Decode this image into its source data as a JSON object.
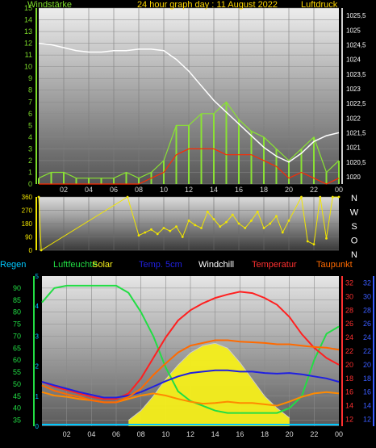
{
  "colors": {
    "bg": "#000000",
    "wind_avg": "#8ae234",
    "gust": "#ff2a00",
    "pressure": "#ffffff",
    "dir": "#f2e600",
    "humidity": "#22dd44",
    "solar": "#f5ef1a",
    "soil": "#2020e0",
    "windchill": "#ff6a00",
    "temperature": "#ff2020",
    "dewpoint": "#ff8a00",
    "rain": "#00c8ff",
    "axis_left_top": "#7ddc2a",
    "axis_right_bottom": "#ff3030",
    "axis_right2": "#3a5cff"
  },
  "top": {
    "title": "24 hour graph day : 11 August 2022",
    "left_label": "Windstärke",
    "right_label": "Luftdruck",
    "left_ticks": [
      "0",
      "1",
      "2",
      "3",
      "4",
      "5",
      "6",
      "7",
      "8",
      "9",
      "10",
      "11",
      "12",
      "13",
      "14",
      "15"
    ],
    "right_ticks": [
      "1020",
      "1020,5",
      "1021",
      "1021,5",
      "1022",
      "1022,5",
      "1023",
      "1023,5",
      "1024",
      "1024,5",
      "1025",
      "1025,5"
    ],
    "x_ticks": [
      "02",
      "04",
      "06",
      "08",
      "10",
      "12",
      "14",
      "16",
      "18",
      "20",
      "22",
      "00"
    ]
  },
  "mid": {
    "left_ticks": [
      "0",
      "90",
      "180",
      "270",
      "360"
    ],
    "dir_letters": [
      "N",
      "W",
      "S",
      "O",
      "N"
    ]
  },
  "bottom": {
    "legend": [
      {
        "label": "Regen",
        "color": "#00c8ff"
      },
      {
        "label": "Luftfeuchte",
        "color": "#22dd44"
      },
      {
        "label": "Solar",
        "color": "#f5ef1a"
      },
      {
        "label": "Temp. 5cm",
        "color": "#2020e0"
      },
      {
        "label": "Windchill",
        "color": "#ffffff"
      },
      {
        "label": "Temperatur",
        "color": "#ff3030"
      },
      {
        "label": "Taupunkt",
        "color": "#ff6a00"
      }
    ],
    "left_ticks": [
      "35",
      "40",
      "45",
      "50",
      "55",
      "60",
      "65",
      "70",
      "75",
      "80",
      "85",
      "90"
    ],
    "rain_ticks": [
      "0",
      "1",
      "2",
      "3",
      "4",
      "5"
    ],
    "right_ticks": [
      "12",
      "14",
      "16",
      "18",
      "20",
      "22",
      "24",
      "26",
      "28",
      "30",
      "32"
    ],
    "right2_ticks": [
      "12",
      "14",
      "16",
      "18",
      "20",
      "22",
      "24",
      "26",
      "28",
      "30",
      "32"
    ],
    "x_ticks": [
      "02",
      "04",
      "06",
      "08",
      "10",
      "12",
      "14",
      "16",
      "18",
      "20",
      "22",
      "00"
    ]
  },
  "chart_data": [
    {
      "type": "line",
      "x_unit": "hour",
      "xlim": [
        0,
        24
      ],
      "series": [
        {
          "name": "Luftdruck",
          "axis": "right",
          "x": [
            0,
            1,
            2,
            3,
            4,
            5,
            6,
            7,
            8,
            9,
            10,
            11,
            12,
            13,
            14,
            15,
            16,
            17,
            18,
            19,
            20,
            21,
            22,
            23,
            24
          ],
          "values": [
            1024.55,
            1024.5,
            1024.4,
            1024.3,
            1024.25,
            1024.25,
            1024.3,
            1024.3,
            1024.35,
            1024.35,
            1024.3,
            1024.0,
            1023.6,
            1023.1,
            1022.6,
            1022.2,
            1021.8,
            1021.4,
            1021.0,
            1020.7,
            1020.5,
            1020.8,
            1021.2,
            1021.4,
            1021.5
          ]
        },
        {
          "name": "Windstärke",
          "axis": "left",
          "x": [
            0,
            1,
            2,
            3,
            4,
            5,
            6,
            7,
            8,
            9,
            10,
            11,
            12,
            13,
            14,
            15,
            16,
            17,
            18,
            19,
            20,
            21,
            22,
            23,
            24
          ],
          "values": [
            0.5,
            1,
            1,
            0.5,
            0.5,
            0.5,
            0.5,
            1,
            0.5,
            1,
            2,
            5,
            5,
            6,
            6,
            7,
            5.5,
            4.5,
            4,
            3,
            2,
            3,
            4,
            1,
            2
          ]
        },
        {
          "name": "Böen",
          "axis": "left",
          "x": [
            0,
            1,
            2,
            3,
            4,
            5,
            6,
            7,
            8,
            9,
            10,
            11,
            12,
            13,
            14,
            15,
            16,
            17,
            18,
            19,
            20,
            21,
            22,
            23,
            24
          ],
          "values": [
            0,
            0,
            0,
            0,
            0,
            0,
            0,
            0,
            0,
            0.5,
            1,
            2.5,
            3,
            3,
            3,
            2.5,
            2.5,
            2.5,
            2,
            1.5,
            0.5,
            1,
            0.5,
            0,
            0.5
          ]
        }
      ],
      "ylim_left": [
        0,
        15
      ],
      "ylim_right": [
        1019.75,
        1025.75
      ]
    },
    {
      "type": "scatter",
      "x_unit": "hour",
      "xlim": [
        0,
        24
      ],
      "ylim": [
        0,
        360
      ],
      "series": [
        {
          "name": "Windrichtung",
          "x": [
            0,
            0.2,
            7.1,
            8,
            8.5,
            9,
            9.5,
            10,
            10.5,
            11,
            11.5,
            12,
            12.5,
            13,
            13.5,
            14,
            14.5,
            15,
            15.5,
            16,
            16.5,
            17,
            17.5,
            18,
            18.5,
            19,
            19.5,
            20,
            21,
            21.5,
            22,
            22.5,
            23,
            23.5,
            24
          ],
          "values": [
            360,
            0,
            360,
            100,
            120,
            140,
            110,
            150,
            130,
            160,
            90,
            200,
            170,
            150,
            260,
            210,
            160,
            190,
            240,
            180,
            150,
            200,
            260,
            150,
            180,
            230,
            120,
            200,
            360,
            60,
            40,
            360,
            80,
            360,
            360
          ]
        }
      ]
    },
    {
      "type": "line",
      "x_unit": "hour",
      "xlim": [
        0,
        24
      ],
      "series": [
        {
          "name": "Luftfeuchte",
          "axis": "left",
          "x": [
            0,
            1,
            2,
            3,
            4,
            5,
            6,
            7,
            8,
            9,
            10,
            11,
            12,
            13,
            14,
            15,
            16,
            17,
            18,
            19,
            20,
            21,
            22,
            23,
            24
          ],
          "values": [
            84,
            90,
            91,
            91,
            91,
            91,
            91,
            88,
            80,
            70,
            57,
            47,
            43,
            41,
            39,
            38,
            38,
            38,
            38,
            38,
            40,
            45,
            60,
            71,
            74
          ]
        },
        {
          "name": "Temperatur",
          "axis": "right",
          "x": [
            0,
            1,
            2,
            3,
            4,
            5,
            6,
            7,
            8,
            9,
            10,
            11,
            12,
            13,
            14,
            15,
            16,
            17,
            18,
            19,
            20,
            21,
            22,
            23,
            24
          ],
          "values": [
            17.5,
            16.8,
            16.3,
            15.8,
            15.3,
            15.0,
            15.0,
            15.8,
            18.0,
            21.0,
            24.0,
            26.5,
            28.0,
            29.0,
            29.8,
            30.3,
            30.7,
            30.5,
            29.8,
            28.8,
            27.0,
            24.5,
            22.5,
            21.0,
            20.0
          ]
        },
        {
          "name": "Taupunkt",
          "axis": "right",
          "x": [
            0,
            1,
            2,
            3,
            4,
            5,
            6,
            7,
            8,
            9,
            10,
            11,
            12,
            13,
            14,
            15,
            16,
            17,
            18,
            19,
            20,
            21,
            22,
            23,
            24
          ],
          "values": [
            16.0,
            15.5,
            15.3,
            15.0,
            14.8,
            14.5,
            14.5,
            15.0,
            15.5,
            15.8,
            15.5,
            15.0,
            14.6,
            14.3,
            14.4,
            14.6,
            14.4,
            14.4,
            14.2,
            14.0,
            14.6,
            15.3,
            15.8,
            16.0,
            15.8
          ]
        },
        {
          "name": "Temp. 5cm",
          "axis": "right2",
          "x": [
            0,
            1,
            2,
            3,
            4,
            5,
            6,
            7,
            8,
            9,
            10,
            11,
            12,
            13,
            14,
            15,
            16,
            17,
            18,
            19,
            20,
            21,
            22,
            23,
            24
          ],
          "values": [
            17.5,
            17.0,
            16.5,
            16.0,
            15.6,
            15.2,
            15.2,
            15.5,
            16.0,
            16.8,
            17.6,
            18.3,
            18.8,
            19.0,
            19.2,
            19.2,
            19.0,
            19.0,
            18.8,
            18.7,
            18.8,
            18.6,
            18.3,
            18.0,
            17.5
          ]
        },
        {
          "name": "Windchill",
          "axis": "right",
          "x": [
            0,
            1,
            2,
            3,
            4,
            5,
            6,
            7,
            8,
            9,
            10,
            11,
            12,
            13,
            14,
            15,
            16,
            17,
            18,
            19,
            20,
            21,
            22,
            23,
            24
          ],
          "values": [
            17.0,
            16.2,
            15.7,
            15.3,
            14.8,
            14.5,
            14.5,
            15.3,
            16.5,
            18.5,
            20.2,
            21.8,
            22.8,
            23.2,
            23.6,
            23.6,
            23.4,
            23.3,
            23.2,
            23.0,
            23.0,
            22.8,
            22.6,
            22.5,
            22.2
          ]
        },
        {
          "name": "Solar",
          "axis": "left",
          "x": [
            7,
            8,
            9,
            10,
            11,
            12,
            13,
            14,
            15,
            16,
            17,
            18,
            19,
            20
          ],
          "values": [
            35,
            39,
            45,
            52,
            58,
            63,
            66,
            67,
            65,
            59,
            52,
            45,
            40,
            36
          ]
        }
      ],
      "ylim_left": [
        32.5,
        95
      ],
      "ylim_right": [
        11,
        33
      ]
    }
  ]
}
